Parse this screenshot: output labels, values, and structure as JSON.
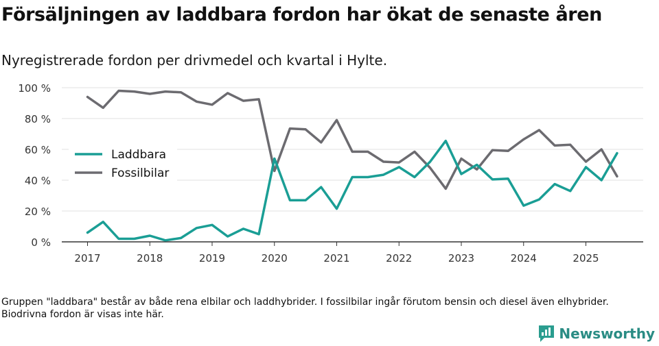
{
  "title": "Försäljningen av laddbara fordon har ökat de senaste åren",
  "subtitle": "Nyregistrerade fordon per drivmedel och kvartal i Hylte.",
  "note": "Gruppen \"laddbara\" består av både rena elbilar och laddhybrider. I fossilbilar ingår förutom bensin och diesel även elhybrider. Biodrivna fordon är visas inte här.",
  "brand": {
    "name": "Newsworthy",
    "color": "#2a9d8f"
  },
  "chart_data": {
    "type": "line",
    "title": "Försäljningen av laddbara fordon har ökat de senaste åren",
    "subtitle": "Nyregistrerade fordon per drivmedel och kvartal i Hylte.",
    "xlabel": "",
    "ylabel": "",
    "ylim": [
      0,
      100
    ],
    "y_ticks": [
      0,
      20,
      40,
      60,
      80,
      100
    ],
    "y_tick_suffix": " %",
    "x_ticks": [
      "2017",
      "2018",
      "2019",
      "2020",
      "2021",
      "2022",
      "2023",
      "2024",
      "2025"
    ],
    "grid": true,
    "legend_position": "left-middle",
    "quarters": [
      "2017Q1",
      "2017Q2",
      "2017Q3",
      "2017Q4",
      "2018Q1",
      "2018Q2",
      "2018Q3",
      "2018Q4",
      "2019Q1",
      "2019Q2",
      "2019Q3",
      "2019Q4",
      "2020Q1",
      "2020Q2",
      "2020Q3",
      "2020Q4",
      "2021Q1",
      "2021Q2",
      "2021Q3",
      "2021Q4",
      "2022Q1",
      "2022Q2",
      "2022Q3",
      "2022Q4",
      "2023Q1",
      "2023Q2",
      "2023Q3",
      "2023Q4",
      "2024Q1",
      "2024Q2",
      "2024Q3",
      "2024Q4",
      "2025Q1",
      "2025Q2",
      "2025Q3"
    ],
    "series": [
      {
        "name": "Laddbara",
        "color": "#1a9e95",
        "values": [
          6,
          13,
          2,
          2,
          4,
          1,
          2.5,
          9,
          11,
          3.5,
          8.5,
          5,
          54,
          27,
          27,
          35.5,
          21.5,
          42,
          42,
          43.5,
          48.5,
          42,
          52,
          65.5,
          44,
          50,
          40.5,
          41,
          23.5,
          27.5,
          37.5,
          33,
          48.5,
          40,
          57.5
        ]
      },
      {
        "name": "Fossilbilar",
        "color": "#6c6b70",
        "values": [
          94,
          87,
          98,
          97.5,
          96,
          97.5,
          97,
          91,
          89,
          96.5,
          91.5,
          92.5,
          46,
          73.5,
          73,
          64.5,
          79,
          58.5,
          58.5,
          52,
          51.5,
          58.5,
          48,
          34.5,
          54,
          47,
          59.5,
          59,
          66.5,
          72.5,
          62.5,
          63,
          52,
          60,
          42.5
        ]
      }
    ]
  }
}
